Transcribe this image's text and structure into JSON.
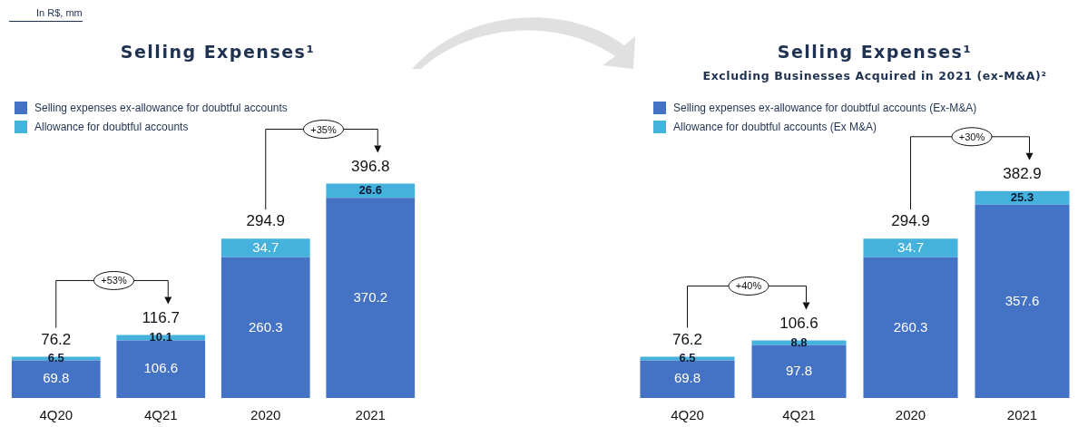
{
  "chart_data": [
    {
      "type": "bar",
      "stacked": true,
      "title": "Selling Expenses¹",
      "categories": [
        "4Q20",
        "4Q21",
        "2020",
        "2021"
      ],
      "legend": "top left",
      "data_labels": true,
      "series": [
        {
          "name": "Selling expenses ex-allowance for doubtful accounts",
          "color": "#4472c4",
          "values": [
            69.8,
            106.6,
            260.3,
            370.2
          ]
        },
        {
          "name": "Allowance for doubtful accounts",
          "color": "#44b2dc",
          "values": [
            6.5,
            10.1,
            34.7,
            26.6
          ]
        }
      ],
      "totals": [
        "76.2",
        "116.7",
        "294.9",
        "396.8"
      ],
      "annotations": [
        "In R$, mm",
        "+53%",
        "+35%"
      ]
    },
    {
      "type": "bar",
      "stacked": true,
      "title": "Selling Expenses¹",
      "subtitle": "Excluding Businesses Acquired in 2021 (ex-M&A)²",
      "categories": [
        "4Q20",
        "4Q21",
        "2020",
        "2021"
      ],
      "legend": "top left",
      "data_labels": true,
      "series": [
        {
          "name": "Selling expenses ex-allowance for doubtful accounts (Ex-M&A)",
          "color": "#4472c4",
          "values": [
            69.8,
            97.8,
            260.3,
            357.6
          ]
        },
        {
          "name": "Allowance for doubtful accounts (Ex M&A)",
          "color": "#44b2dc",
          "values": [
            6.5,
            8.8,
            34.7,
            25.3
          ]
        }
      ],
      "totals": [
        "76.2",
        "106.6",
        "294.9",
        "382.9"
      ],
      "annotations": [
        "+40%",
        "+30%"
      ]
    }
  ]
}
